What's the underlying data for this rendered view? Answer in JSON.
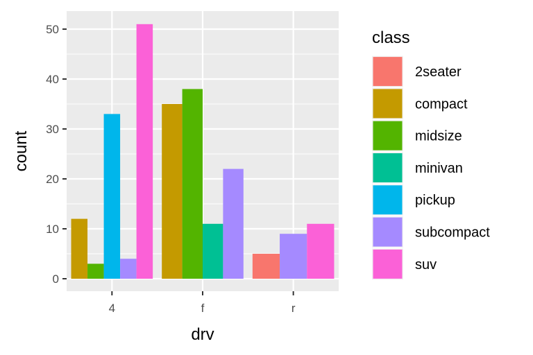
{
  "chart_data": {
    "type": "bar",
    "position": "dodge",
    "title": "",
    "xlabel": "drv",
    "ylabel": "count",
    "categories": [
      "4",
      "f",
      "r"
    ],
    "ylim": [
      0,
      53.5
    ],
    "yticks": [
      0,
      10,
      20,
      30,
      40,
      50
    ],
    "ytick_labels": [
      "0",
      "10",
      "20",
      "30",
      "40",
      "50"
    ],
    "legend": {
      "title": "class",
      "placement": "right"
    },
    "series": [
      {
        "name": "2seater",
        "color": "#F8766D",
        "values": [
          null,
          null,
          5
        ]
      },
      {
        "name": "compact",
        "color": "#C49A00",
        "values": [
          12,
          35,
          null
        ]
      },
      {
        "name": "midsize",
        "color": "#53B400",
        "values": [
          3,
          38,
          null
        ]
      },
      {
        "name": "minivan",
        "color": "#00C094",
        "values": [
          null,
          11,
          null
        ]
      },
      {
        "name": "pickup",
        "color": "#00B6EB",
        "values": [
          33,
          null,
          null
        ]
      },
      {
        "name": "subcompact",
        "color": "#A58AFF",
        "values": [
          4,
          22,
          9
        ]
      },
      {
        "name": "suv",
        "color": "#FB61D7",
        "values": [
          51,
          null,
          11
        ]
      }
    ],
    "panel_background": "#EBEBEB",
    "grid_color": "#FFFFFF",
    "grid": true
  }
}
